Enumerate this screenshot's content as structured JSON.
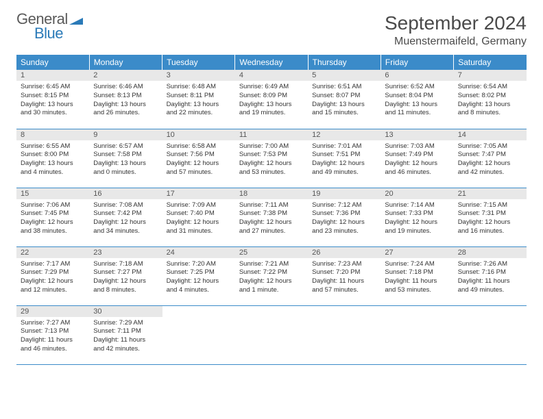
{
  "brand": {
    "general": "General",
    "blue": "Blue"
  },
  "title": "September 2024",
  "location": "Muenstermaifeld, Germany",
  "colors": {
    "header_bg": "#3b8bc9",
    "header_text": "#ffffff",
    "daynum_bg": "#e8e8e8",
    "daynum_text": "#555555",
    "body_text": "#333333",
    "rule": "#3b8bc9",
    "logo_gray": "#5a5a5a",
    "logo_blue": "#2a7ab8"
  },
  "weekdays": [
    "Sunday",
    "Monday",
    "Tuesday",
    "Wednesday",
    "Thursday",
    "Friday",
    "Saturday"
  ],
  "days": [
    {
      "n": "1",
      "sunrise": "6:45 AM",
      "sunset": "8:15 PM",
      "daylight": "13 hours and 30 minutes."
    },
    {
      "n": "2",
      "sunrise": "6:46 AM",
      "sunset": "8:13 PM",
      "daylight": "13 hours and 26 minutes."
    },
    {
      "n": "3",
      "sunrise": "6:48 AM",
      "sunset": "8:11 PM",
      "daylight": "13 hours and 22 minutes."
    },
    {
      "n": "4",
      "sunrise": "6:49 AM",
      "sunset": "8:09 PM",
      "daylight": "13 hours and 19 minutes."
    },
    {
      "n": "5",
      "sunrise": "6:51 AM",
      "sunset": "8:07 PM",
      "daylight": "13 hours and 15 minutes."
    },
    {
      "n": "6",
      "sunrise": "6:52 AM",
      "sunset": "8:04 PM",
      "daylight": "13 hours and 11 minutes."
    },
    {
      "n": "7",
      "sunrise": "6:54 AM",
      "sunset": "8:02 PM",
      "daylight": "13 hours and 8 minutes."
    },
    {
      "n": "8",
      "sunrise": "6:55 AM",
      "sunset": "8:00 PM",
      "daylight": "13 hours and 4 minutes."
    },
    {
      "n": "9",
      "sunrise": "6:57 AM",
      "sunset": "7:58 PM",
      "daylight": "13 hours and 0 minutes."
    },
    {
      "n": "10",
      "sunrise": "6:58 AM",
      "sunset": "7:56 PM",
      "daylight": "12 hours and 57 minutes."
    },
    {
      "n": "11",
      "sunrise": "7:00 AM",
      "sunset": "7:53 PM",
      "daylight": "12 hours and 53 minutes."
    },
    {
      "n": "12",
      "sunrise": "7:01 AM",
      "sunset": "7:51 PM",
      "daylight": "12 hours and 49 minutes."
    },
    {
      "n": "13",
      "sunrise": "7:03 AM",
      "sunset": "7:49 PM",
      "daylight": "12 hours and 46 minutes."
    },
    {
      "n": "14",
      "sunrise": "7:05 AM",
      "sunset": "7:47 PM",
      "daylight": "12 hours and 42 minutes."
    },
    {
      "n": "15",
      "sunrise": "7:06 AM",
      "sunset": "7:45 PM",
      "daylight": "12 hours and 38 minutes."
    },
    {
      "n": "16",
      "sunrise": "7:08 AM",
      "sunset": "7:42 PM",
      "daylight": "12 hours and 34 minutes."
    },
    {
      "n": "17",
      "sunrise": "7:09 AM",
      "sunset": "7:40 PM",
      "daylight": "12 hours and 31 minutes."
    },
    {
      "n": "18",
      "sunrise": "7:11 AM",
      "sunset": "7:38 PM",
      "daylight": "12 hours and 27 minutes."
    },
    {
      "n": "19",
      "sunrise": "7:12 AM",
      "sunset": "7:36 PM",
      "daylight": "12 hours and 23 minutes."
    },
    {
      "n": "20",
      "sunrise": "7:14 AM",
      "sunset": "7:33 PM",
      "daylight": "12 hours and 19 minutes."
    },
    {
      "n": "21",
      "sunrise": "7:15 AM",
      "sunset": "7:31 PM",
      "daylight": "12 hours and 16 minutes."
    },
    {
      "n": "22",
      "sunrise": "7:17 AM",
      "sunset": "7:29 PM",
      "daylight": "12 hours and 12 minutes."
    },
    {
      "n": "23",
      "sunrise": "7:18 AM",
      "sunset": "7:27 PM",
      "daylight": "12 hours and 8 minutes."
    },
    {
      "n": "24",
      "sunrise": "7:20 AM",
      "sunset": "7:25 PM",
      "daylight": "12 hours and 4 minutes."
    },
    {
      "n": "25",
      "sunrise": "7:21 AM",
      "sunset": "7:22 PM",
      "daylight": "12 hours and 1 minute."
    },
    {
      "n": "26",
      "sunrise": "7:23 AM",
      "sunset": "7:20 PM",
      "daylight": "11 hours and 57 minutes."
    },
    {
      "n": "27",
      "sunrise": "7:24 AM",
      "sunset": "7:18 PM",
      "daylight": "11 hours and 53 minutes."
    },
    {
      "n": "28",
      "sunrise": "7:26 AM",
      "sunset": "7:16 PM",
      "daylight": "11 hours and 49 minutes."
    },
    {
      "n": "29",
      "sunrise": "7:27 AM",
      "sunset": "7:13 PM",
      "daylight": "11 hours and 46 minutes."
    },
    {
      "n": "30",
      "sunrise": "7:29 AM",
      "sunset": "7:11 PM",
      "daylight": "11 hours and 42 minutes."
    }
  ],
  "labels": {
    "sunrise": "Sunrise:",
    "sunset": "Sunset:",
    "daylight": "Daylight:"
  }
}
